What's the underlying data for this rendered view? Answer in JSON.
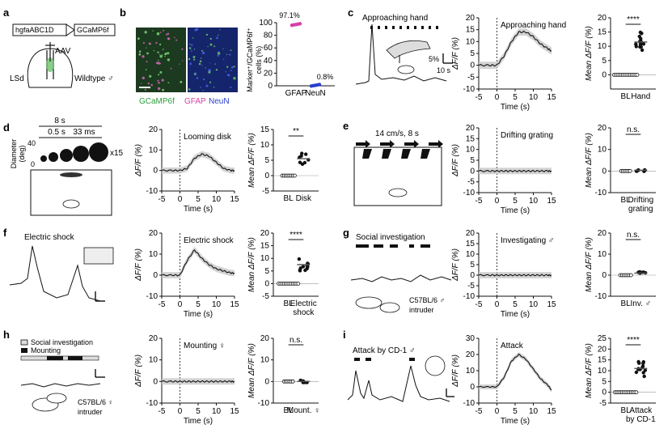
{
  "panel_labels": [
    "a",
    "b",
    "c",
    "d",
    "e",
    "f",
    "g",
    "h",
    "i"
  ],
  "panel_a": {
    "construct": [
      "hgfaABC1D",
      "GCaMP6f"
    ],
    "virus": "AAV",
    "region": "LSd",
    "animal": "Wildtype ♂"
  },
  "panel_b": {
    "image_labels": [
      "GCaMP6f",
      "GFAP",
      "NeuN"
    ],
    "image_label_colors": [
      "#2a9d3a",
      "#d63fa8",
      "#2a3fcf"
    ],
    "ylabel_line1": "Marker⁺/GCaMP6f⁺",
    "ylabel_line2": "cells (%)",
    "annotations": [
      "97.1%",
      "0.8%"
    ]
  },
  "traces": {
    "c": "Approaching hand",
    "d": "Looming disk",
    "e": "Drifting grating",
    "f": "Electric shock",
    "g": "Investigating ♂",
    "h": "Mounting ♀",
    "i": "Attack"
  },
  "axis_text": {
    "dff": "ΔF/F (%)",
    "mean_dff": "Mean ΔF/F (%)",
    "time": "Time (s)"
  },
  "stats": {
    "c": "****",
    "d": "**",
    "e": "n.s.",
    "f": "****",
    "g": "n.s.",
    "h": "n.s.",
    "i": "****"
  },
  "bar_labels": {
    "c": [
      "BL",
      "Hand"
    ],
    "d": [
      "BL",
      "Disk"
    ],
    "e": [
      "BL",
      "Drifting",
      "grating"
    ],
    "f": [
      "BL",
      "Electric",
      "shock"
    ],
    "g": [
      "BL",
      "Inv. ♂"
    ],
    "h": [
      "BL",
      "Mount. ♀"
    ],
    "i": [
      "BL",
      "Attack",
      "by CD-1"
    ]
  },
  "stimuli": {
    "c_label": "Approaching hand",
    "c_scale": [
      "5%",
      "10 s"
    ],
    "d_header": [
      "8 s",
      "0.5 s",
      "33 ms"
    ],
    "d_axis": [
      "Diameter",
      "(deg)"
    ],
    "d_ticks": [
      "40",
      "0"
    ],
    "d_repeat": "x15",
    "e_label": "14 cm/s, 8 s",
    "f_label": "Electric shock",
    "g_label": "Social investigation",
    "g_mouse": [
      "C57BL/6 ♂",
      "intruder"
    ],
    "h_legend": [
      "Social investigation",
      "Mounting"
    ],
    "h_mouse": [
      "C57BL/6 ♀",
      "intruder"
    ],
    "i_label": "Attack by CD-1 ♂"
  },
  "chart_data": [
    {
      "type": "scatter",
      "panel": "b",
      "categories": [
        "GFAP",
        "NeuN"
      ],
      "values": [
        97.1,
        0.8
      ],
      "ylim": [
        0,
        100
      ],
      "yticks": [
        0,
        20,
        40,
        60,
        80,
        100
      ]
    },
    {
      "type": "line",
      "panel": "c",
      "x": [
        -5,
        -2,
        0,
        2,
        4,
        6,
        8,
        10,
        12,
        14,
        15
      ],
      "y": [
        0,
        0,
        0,
        4,
        10,
        14,
        14,
        12,
        9,
        7,
        6
      ],
      "xlim": [
        -5,
        15
      ],
      "ylim": [
        -10,
        20
      ],
      "yticks": [
        -10,
        -5,
        0,
        5,
        10,
        15,
        20
      ]
    },
    {
      "type": "scatter",
      "panel": "c",
      "categories": [
        "BL",
        "Hand"
      ],
      "values": [
        0,
        11.5
      ],
      "ylim": [
        -5,
        20
      ],
      "yticks": [
        0,
        5,
        10,
        15,
        20
      ]
    },
    {
      "type": "line",
      "panel": "d",
      "x": [
        -5,
        -2,
        0,
        2,
        4,
        6,
        8,
        10,
        12,
        14,
        15
      ],
      "y": [
        0,
        0,
        0,
        1,
        6,
        8,
        7,
        4,
        1,
        0,
        0
      ],
      "xlim": [
        -5,
        15
      ],
      "ylim": [
        -10,
        20
      ],
      "yticks": [
        -10,
        0,
        10,
        20
      ]
    },
    {
      "type": "scatter",
      "panel": "d",
      "categories": [
        "BL",
        "Disk"
      ],
      "values": [
        0,
        5.5
      ],
      "ylim": [
        -5,
        15
      ],
      "yticks": [
        -5,
        0,
        5,
        10,
        15
      ]
    },
    {
      "type": "line",
      "panel": "e",
      "x": [
        -5,
        -2,
        0,
        2,
        4,
        6,
        8,
        10,
        12,
        14,
        15
      ],
      "y": [
        0,
        0,
        0,
        0,
        0,
        0,
        0,
        0,
        0,
        0,
        0
      ],
      "xlim": [
        -5,
        15
      ],
      "ylim": [
        -10,
        20
      ],
      "yticks": [
        -10,
        -5,
        0,
        5,
        10,
        15,
        20
      ]
    },
    {
      "type": "scatter",
      "panel": "e",
      "categories": [
        "BL",
        "Drifting grating"
      ],
      "values": [
        0,
        0.4
      ],
      "ylim": [
        -10,
        20
      ],
      "yticks": [
        -10,
        0,
        10,
        20
      ]
    },
    {
      "type": "line",
      "panel": "f",
      "x": [
        -5,
        -2,
        0,
        2,
        4,
        6,
        8,
        10,
        12,
        14,
        15
      ],
      "y": [
        0,
        0,
        0,
        7,
        12,
        8,
        5,
        3,
        2,
        1,
        1
      ],
      "xlim": [
        -5,
        15
      ],
      "ylim": [
        -10,
        20
      ],
      "yticks": [
        -10,
        0,
        10,
        20
      ]
    },
    {
      "type": "scatter",
      "panel": "f",
      "categories": [
        "BL",
        "Electric shock"
      ],
      "values": [
        0,
        7.5
      ],
      "ylim": [
        -5,
        20
      ],
      "yticks": [
        -5,
        0,
        5,
        10,
        15,
        20
      ]
    },
    {
      "type": "line",
      "panel": "g",
      "x": [
        -5,
        -2,
        0,
        2,
        4,
        6,
        8,
        10,
        12,
        14,
        15
      ],
      "y": [
        0,
        0,
        0,
        0,
        0,
        0,
        0,
        0,
        0,
        0,
        0
      ],
      "xlim": [
        -5,
        15
      ],
      "ylim": [
        -10,
        20
      ],
      "yticks": [
        -10,
        -5,
        0,
        5,
        10,
        15,
        20
      ]
    },
    {
      "type": "scatter",
      "panel": "g",
      "categories": [
        "BL",
        "Inv. ♂"
      ],
      "values": [
        0,
        1
      ],
      "ylim": [
        -10,
        20
      ],
      "yticks": [
        -10,
        0,
        10,
        20
      ]
    },
    {
      "type": "line",
      "panel": "h",
      "x": [
        -5,
        -2,
        0,
        2,
        4,
        6,
        8,
        10,
        12,
        14,
        15
      ],
      "y": [
        0,
        0,
        0,
        0,
        0,
        0,
        0,
        0,
        0,
        0,
        0
      ],
      "xlim": [
        -5,
        15
      ],
      "ylim": [
        -10,
        20
      ],
      "yticks": [
        -10,
        0,
        10,
        20
      ]
    },
    {
      "type": "scatter",
      "panel": "h",
      "categories": [
        "BL",
        "Mount. ♀"
      ],
      "values": [
        0,
        0
      ],
      "ylim": [
        -10,
        20
      ],
      "yticks": [
        -10,
        0,
        10,
        20
      ]
    },
    {
      "type": "line",
      "panel": "i",
      "x": [
        -5,
        -2,
        0,
        2,
        4,
        6,
        8,
        10,
        12,
        14,
        15
      ],
      "y": [
        0,
        0,
        0,
        6,
        16,
        20,
        17,
        11,
        5,
        1,
        -2
      ],
      "xlim": [
        -5,
        15
      ],
      "ylim": [
        -10,
        30
      ],
      "yticks": [
        -10,
        0,
        10,
        20,
        30
      ]
    },
    {
      "type": "scatter",
      "panel": "i",
      "categories": [
        "BL",
        "Attack by CD-1"
      ],
      "values": [
        0,
        11
      ],
      "ylim": [
        -5,
        25
      ],
      "yticks": [
        -5,
        0,
        5,
        10,
        15,
        20,
        25
      ]
    }
  ]
}
